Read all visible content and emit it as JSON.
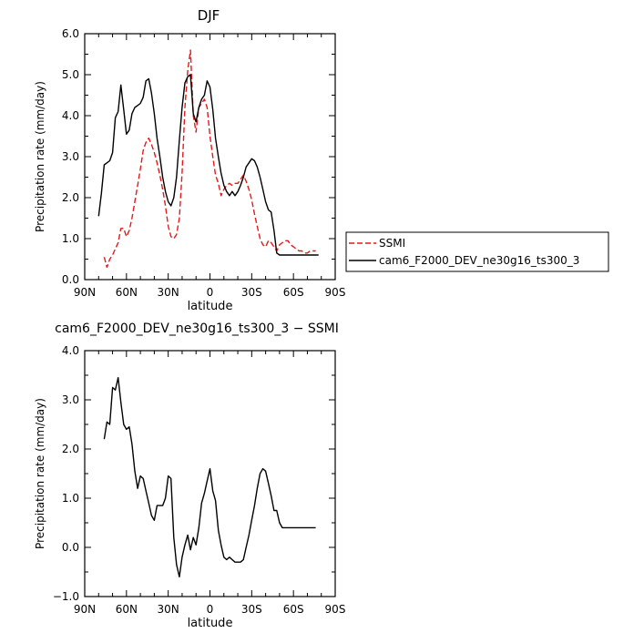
{
  "chart_data": [
    {
      "type": "line",
      "title": "DJF",
      "xlabel": "latitude",
      "ylabel": "Precipitation rate (mm/day)",
      "xlim": [
        -90,
        90
      ],
      "ylim": [
        0,
        6
      ],
      "x_tick_values": [
        -90,
        -60,
        -30,
        0,
        30,
        60,
        90
      ],
      "x_tick_labels": [
        "90N",
        "60N",
        "30N",
        "0",
        "30S",
        "60S",
        "90S"
      ],
      "y_tick_values": [
        0,
        1,
        2,
        3,
        4,
        5,
        6
      ],
      "y_tick_labels": [
        "0.0",
        "1.0",
        "2.0",
        "3.0",
        "4.0",
        "5.0",
        "6.0"
      ],
      "legend_position": "right",
      "series": [
        {
          "name": "SSMI",
          "color": "#e31a1c",
          "dash": "dashed",
          "x": [
            -76,
            -74,
            -72,
            -70,
            -68,
            -66,
            -64,
            -62,
            -60,
            -58,
            -56,
            -54,
            -52,
            -50,
            -48,
            -46,
            -44,
            -42,
            -40,
            -38,
            -36,
            -34,
            -32,
            -30,
            -28,
            -26,
            -24,
            -22,
            -20,
            -18,
            -16,
            -14,
            -12,
            -10,
            -8,
            -6,
            -4,
            -2,
            0,
            2,
            4,
            6,
            8,
            10,
            12,
            14,
            16,
            18,
            20,
            22,
            24,
            26,
            28,
            30,
            32,
            34,
            36,
            38,
            40,
            42,
            44,
            46,
            48,
            50,
            52,
            54,
            56,
            58,
            60,
            62,
            64,
            66,
            68,
            70,
            72,
            74,
            76
          ],
          "y": [
            0.55,
            0.3,
            0.5,
            0.6,
            0.75,
            0.9,
            1.25,
            1.25,
            1.05,
            1.2,
            1.5,
            1.9,
            2.3,
            2.7,
            3.15,
            3.35,
            3.45,
            3.3,
            3.1,
            2.85,
            2.55,
            2.2,
            1.8,
            1.3,
            1.05,
            1.0,
            1.1,
            1.5,
            2.6,
            4.2,
            5.1,
            5.6,
            4.0,
            3.6,
            4.2,
            4.3,
            4.4,
            4.2,
            3.5,
            3.0,
            2.55,
            2.35,
            2.05,
            2.2,
            2.3,
            2.35,
            2.3,
            2.35,
            2.35,
            2.45,
            2.55,
            2.4,
            2.2,
            1.95,
            1.6,
            1.3,
            1.0,
            0.85,
            0.8,
            0.95,
            0.9,
            0.8,
            0.7,
            0.85,
            0.9,
            0.95,
            0.95,
            0.85,
            0.8,
            0.75,
            0.7,
            0.7,
            0.65,
            0.65,
            0.7,
            0.7,
            0.7
          ]
        },
        {
          "name": "cam6_F2000_DEV_ne30g16_ts300_3",
          "color": "#000000",
          "dash": "solid",
          "x": [
            -80,
            -78,
            -76,
            -74,
            -72,
            -70,
            -68,
            -66,
            -64,
            -62,
            -60,
            -58,
            -56,
            -54,
            -52,
            -50,
            -48,
            -46,
            -44,
            -42,
            -40,
            -38,
            -36,
            -34,
            -32,
            -30,
            -28,
            -26,
            -24,
            -22,
            -20,
            -18,
            -16,
            -14,
            -12,
            -10,
            -8,
            -6,
            -4,
            -2,
            0,
            2,
            4,
            6,
            8,
            10,
            12,
            14,
            16,
            18,
            20,
            22,
            24,
            26,
            28,
            30,
            32,
            34,
            36,
            38,
            40,
            42,
            44,
            46,
            48,
            50,
            52,
            54,
            56,
            58,
            60,
            62,
            64,
            66,
            68,
            70,
            72,
            74,
            76,
            78
          ],
          "y": [
            1.55,
            2.1,
            2.8,
            2.85,
            2.9,
            3.1,
            3.95,
            4.1,
            4.75,
            4.15,
            3.55,
            3.65,
            4.05,
            4.2,
            4.25,
            4.3,
            4.45,
            4.85,
            4.9,
            4.55,
            4.05,
            3.45,
            3.0,
            2.5,
            2.15,
            1.9,
            1.8,
            2.0,
            2.5,
            3.4,
            4.2,
            4.8,
            4.95,
            5.0,
            4.05,
            3.85,
            4.2,
            4.4,
            4.5,
            4.85,
            4.7,
            4.15,
            3.45,
            3.0,
            2.6,
            2.3,
            2.15,
            2.05,
            2.15,
            2.05,
            2.15,
            2.3,
            2.5,
            2.75,
            2.85,
            2.95,
            2.9,
            2.75,
            2.5,
            2.2,
            1.9,
            1.7,
            1.65,
            1.2,
            0.65,
            0.6,
            0.6,
            0.6,
            0.6,
            0.6,
            0.6,
            0.6,
            0.6,
            0.6,
            0.6,
            0.6,
            0.6,
            0.6,
            0.6,
            0.6
          ]
        }
      ]
    },
    {
      "type": "line",
      "title": "cam6_F2000_DEV_ne30g16_ts300_3 − SSMI",
      "xlabel": "latitude",
      "ylabel": "Precipitation rate (mm/day)",
      "xlim": [
        -90,
        90
      ],
      "ylim": [
        -1,
        4
      ],
      "x_tick_values": [
        -90,
        -60,
        -30,
        0,
        30,
        60,
        90
      ],
      "x_tick_labels": [
        "90N",
        "60N",
        "30N",
        "0",
        "30S",
        "60S",
        "90S"
      ],
      "y_tick_values": [
        -1,
        0,
        1,
        2,
        3,
        4
      ],
      "y_tick_labels": [
        "−1.0",
        "0.0",
        "1.0",
        "2.0",
        "3.0",
        "4.0"
      ],
      "series": [
        {
          "name": "cam6_F2000_DEV_ne30g16_ts300_3 − SSMI",
          "color": "#000000",
          "dash": "solid",
          "x": [
            -76,
            -74,
            -72,
            -70,
            -68,
            -66,
            -64,
            -62,
            -60,
            -58,
            -56,
            -54,
            -52,
            -50,
            -48,
            -46,
            -44,
            -42,
            -40,
            -38,
            -36,
            -34,
            -32,
            -30,
            -28,
            -26,
            -24,
            -22,
            -20,
            -18,
            -16,
            -14,
            -12,
            -10,
            -8,
            -6,
            -4,
            -2,
            0,
            2,
            4,
            6,
            8,
            10,
            12,
            14,
            16,
            18,
            20,
            22,
            24,
            26,
            28,
            30,
            32,
            34,
            36,
            38,
            40,
            42,
            44,
            46,
            48,
            50,
            52,
            54,
            56,
            58,
            60,
            62,
            64,
            66,
            68,
            70,
            72,
            74,
            76
          ],
          "y": [
            2.2,
            2.55,
            2.5,
            3.25,
            3.2,
            3.45,
            2.95,
            2.5,
            2.4,
            2.45,
            2.1,
            1.55,
            1.2,
            1.45,
            1.4,
            1.15,
            0.9,
            0.65,
            0.55,
            0.85,
            0.85,
            0.85,
            1.0,
            1.45,
            1.4,
            0.2,
            -0.35,
            -0.6,
            -0.2,
            0.05,
            0.25,
            -0.05,
            0.2,
            0.05,
            0.4,
            0.9,
            1.1,
            1.35,
            1.6,
            1.15,
            0.95,
            0.35,
            0.05,
            -0.2,
            -0.25,
            -0.2,
            -0.25,
            -0.3,
            -0.3,
            -0.3,
            -0.25,
            0.0,
            0.25,
            0.55,
            0.85,
            1.2,
            1.5,
            1.6,
            1.55,
            1.3,
            1.05,
            0.75,
            0.75,
            0.5,
            0.4,
            0.4,
            0.4,
            0.4,
            0.4,
            0.4,
            0.4,
            0.4,
            0.4,
            0.4,
            0.4,
            0.4,
            0.4
          ]
        }
      ]
    }
  ]
}
